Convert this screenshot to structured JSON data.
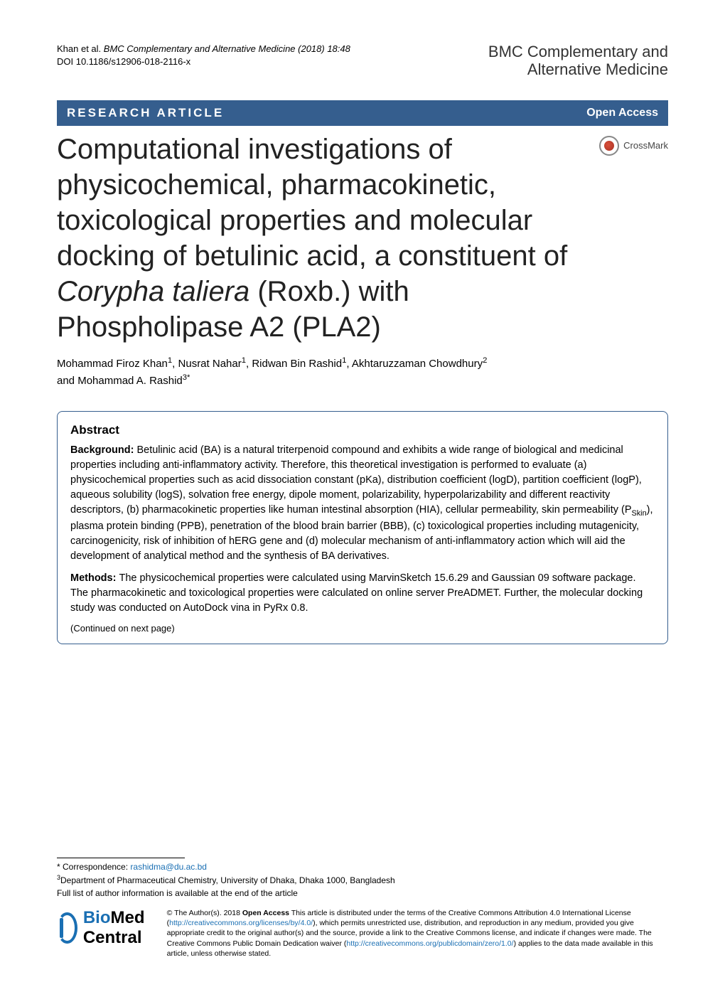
{
  "colors": {
    "bar_bg": "#355e8e",
    "bar_fg": "#ffffff",
    "link": "#1a6fb3",
    "text": "#000000",
    "page_bg": "#ffffff"
  },
  "header": {
    "citation_authors": "Khan et al. ",
    "citation_rest": "BMC Complementary and Alternative Medicine  (2018) 18:48",
    "doi": "DOI 10.1186/s12906-018-2116-x",
    "journal_line1": "BMC Complementary and",
    "journal_line2": "Alternative Medicine"
  },
  "bar": {
    "article_type": "RESEARCH ARTICLE",
    "open_access": "Open Access"
  },
  "crossmark": {
    "label": "CrossMark"
  },
  "title": {
    "pre": "Computational investigations of physicochemical, pharmacokinetic, toxicological properties and molecular docking of betulinic acid, a constituent of ",
    "species": "Corypha taliera",
    "post": " (Roxb.) with Phospholipase A2 (PLA2)"
  },
  "authors": {
    "a1": "Mohammad Firoz Khan",
    "s1": "1",
    "a2": "Nusrat Nahar",
    "s2": "1",
    "a3": "Ridwan Bin Rashid",
    "s3": "1",
    "a4": "Akhtaruzzaman Chowdhury",
    "s4": "2",
    "and": " and ",
    "a5": "Mohammad A. Rashid",
    "s5": "3*"
  },
  "abstract": {
    "heading": "Abstract",
    "bg_label": "Background: ",
    "bg_text": "Betulinic acid (BA) is a natural triterpenoid compound and exhibits a wide range of biological and medicinal properties including anti-inflammatory activity. Therefore, this theoretical investigation is performed to evaluate (a) physicochemical properties such as acid dissociation constant (pKa), distribution coefficient (logD), partition coefficient (logP), aqueous solubility (logS), solvation free energy, dipole moment, polarizability, hyperpolarizability and different reactivity descriptors, (b) pharmacokinetic properties like human intestinal absorption (HIA), cellular permeability, skin permeability (P",
    "bg_sub": "Skin",
    "bg_text2": "), plasma protein binding (PPB), penetration of the blood brain barrier (BBB), (c) toxicological properties including mutagenicity, carcinogenicity, risk of inhibition of hERG gene and (d) molecular mechanism of anti-inflammatory action which will aid the development of analytical method and the synthesis of BA derivatives.",
    "m_label": "Methods: ",
    "m_text": "The physicochemical properties were calculated using MarvinSketch 15.6.29 and Gaussian 09 software package. The pharmacokinetic and toxicological properties were calculated on online server PreADMET. Further, the molecular docking study was conducted on AutoDock vina in PyRx 0.8.",
    "continued": "(Continued on next page)"
  },
  "footer": {
    "corr_label": "* Correspondence: ",
    "corr_email": "rashidma@du.ac.bd",
    "affil_sup": "3",
    "affil_text": "Department of Pharmaceutical Chemistry, University of Dhaka, Dhaka 1000, Bangladesh",
    "full_list": "Full list of author information is available at the end of the article",
    "bmc_bio": "Bio",
    "bmc_med": "Med",
    "bmc_central": " Central",
    "license_pre": "© The Author(s). 2018 ",
    "license_oa": "Open Access",
    "license_1": " This article is distributed under the terms of the Creative Commons Attribution 4.0 International License (",
    "license_link1": "http://creativecommons.org/licenses/by/4.0/",
    "license_2": "), which permits unrestricted use, distribution, and reproduction in any medium, provided you give appropriate credit to the original author(s) and the source, provide a link to the Creative Commons license, and indicate if changes were made. The Creative Commons Public Domain Dedication waiver (",
    "license_link2": "http://creativecommons.org/publicdomain/zero/1.0/",
    "license_3": ") applies to the data made available in this article, unless otherwise stated."
  }
}
